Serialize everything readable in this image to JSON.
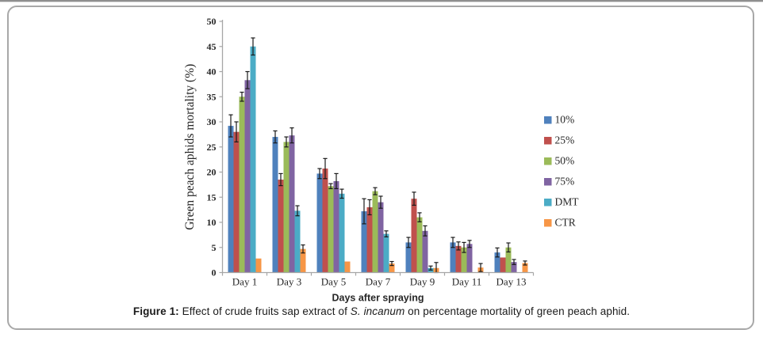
{
  "page": {
    "top_rule_color": "#8f8f8f",
    "bottom_rule_color": "#4a413d",
    "card_border_color": "#a8a8a8"
  },
  "chart_data": {
    "type": "bar",
    "title": "",
    "xlabel": "Days after spraying",
    "ylabel": "Green peach aphids mortality (%)",
    "categories": [
      "Day 1",
      "Day 3",
      "Day 5",
      "Day 7",
      "Day 9",
      "Day 11",
      "Day 13"
    ],
    "series": [
      {
        "name": "10%",
        "color": "#4F81BD",
        "values": [
          29.2,
          27.0,
          19.7,
          12.2,
          6.0,
          6.0,
          4.0
        ],
        "errors": [
          2.2,
          1.2,
          1.0,
          2.5,
          1.0,
          1.0,
          0.9
        ]
      },
      {
        "name": "25%",
        "color": "#C0504D",
        "values": [
          28.0,
          18.5,
          20.7,
          13.0,
          14.7,
          5.3,
          3.0
        ],
        "errors": [
          2.0,
          1.2,
          2.0,
          1.5,
          1.3,
          0.8,
          0
        ]
      },
      {
        "name": "50%",
        "color": "#9BBB59",
        "values": [
          35.0,
          26.0,
          17.2,
          16.2,
          11.0,
          5.0,
          5.0
        ],
        "errors": [
          0.9,
          1.0,
          0.5,
          0.7,
          0.9,
          1.0,
          0.9
        ]
      },
      {
        "name": "75%",
        "color": "#8064A2",
        "values": [
          38.3,
          27.3,
          18.2,
          14.0,
          8.3,
          5.7,
          2.1
        ],
        "errors": [
          1.7,
          1.5,
          1.5,
          1.2,
          1.0,
          0.7,
          0.5
        ]
      },
      {
        "name": "DMT",
        "color": "#4BACC6",
        "values": [
          45.0,
          12.3,
          15.7,
          7.7,
          0.9,
          0,
          0
        ],
        "errors": [
          1.7,
          1.0,
          0.9,
          0.6,
          0.4,
          0,
          0
        ]
      },
      {
        "name": "CTR",
        "color": "#F79646",
        "values": [
          2.8,
          4.7,
          2.2,
          1.8,
          0.9,
          1.0,
          1.9
        ],
        "errors": [
          0,
          0.8,
          0,
          0.4,
          1.1,
          0.8,
          0.4
        ]
      }
    ],
    "ylim": [
      0,
      50
    ],
    "ytick_step": 5,
    "grid": false,
    "legend_position": "right",
    "error_bars": true
  },
  "caption": {
    "label": "Figure 1:",
    "before_italic": " Effect of crude fruits sap extract of ",
    "italic": "S. incanum",
    "after_italic": " on percentage mortality of green peach aphid."
  }
}
